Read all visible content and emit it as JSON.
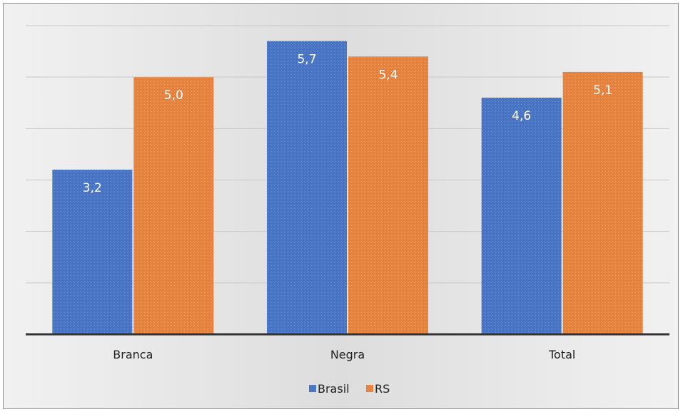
{
  "chart_data": {
    "type": "bar",
    "categories": [
      "Branca",
      "Negra",
      "Total"
    ],
    "series": [
      {
        "name": "Brasil",
        "values": [
          3.2,
          5.7,
          4.6
        ],
        "labels": [
          "3,2",
          "5,7",
          "4,6"
        ],
        "color": "#4472c4"
      },
      {
        "name": "RS",
        "values": [
          5.0,
          5.4,
          5.1
        ],
        "labels": [
          "5,0",
          "5,4",
          "5,1"
        ],
        "color": "#ed7d31"
      }
    ],
    "title": "",
    "xlabel": "",
    "ylabel": "",
    "ylim": [
      0,
      6
    ],
    "grid": true,
    "legend_position": "bottom",
    "background": "#e5e5e5",
    "gridline_color": "#c8c8c8"
  }
}
